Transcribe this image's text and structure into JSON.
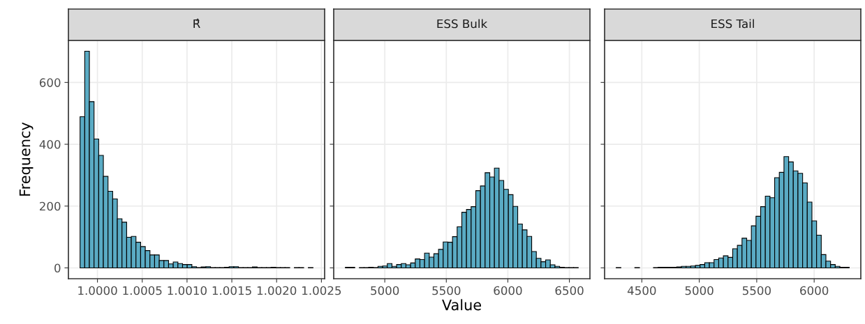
{
  "chart_data": [
    {
      "type": "histogram",
      "title": "R̂",
      "ylabel": "Frequency",
      "color": "#5aabc4",
      "grid": true,
      "bins": [
        0.999806,
        0.999858,
        0.99991,
        0.999962,
        1.000014,
        1.000066,
        1.000118,
        1.00017,
        1.000222,
        1.000274,
        1.000326,
        1.000378,
        1.00043,
        1.000482,
        1.000534,
        1.000586,
        1.000638,
        1.00069,
        1.000742,
        1.000794,
        1.000846,
        1.000898,
        1.00095,
        1.001002,
        1.001054,
        1.001106,
        1.001158,
        1.00121,
        1.001262,
        1.001314,
        1.001366,
        1.001418,
        1.00147,
        1.001522,
        1.001574,
        1.001626,
        1.001678,
        1.00173,
        1.001782,
        1.001834,
        1.001886,
        1.001938,
        1.00199,
        1.002042,
        1.002094,
        1.002146,
        1.002198,
        1.00225,
        1.002302,
        1.002354,
        1.002406
      ],
      "values": [
        489,
        701,
        538,
        417,
        364,
        296,
        248,
        223,
        159,
        148,
        99,
        102,
        83,
        69,
        56,
        42,
        42,
        24,
        24,
        13,
        19,
        14,
        11,
        11,
        4,
        1,
        3,
        4,
        1,
        1,
        1,
        2,
        4,
        4,
        1,
        1,
        1,
        3,
        1,
        1,
        1,
        2,
        1,
        1,
        1,
        0,
        1,
        1,
        0,
        1
      ],
      "xlim": [
        0.999676,
        1.002536
      ],
      "xticks": [
        {
          "value": 1.0,
          "label": "1.0000"
        },
        {
          "value": 1.0005,
          "label": "1.0005"
        },
        {
          "value": 1.001,
          "label": "1.0010"
        },
        {
          "value": 1.0015,
          "label": "1.0015"
        },
        {
          "value": 1.002,
          "label": "1.0020"
        },
        {
          "value": 1.0025,
          "label": "1.0025"
        }
      ],
      "ylim": [
        -35,
        736
      ],
      "yticks": [
        0,
        200,
        400,
        600
      ]
    },
    {
      "type": "histogram",
      "title": "ESS Bulk",
      "xlabel": "Value",
      "color": "#5aabc4",
      "grid": true,
      "tick_labels": "x",
      "bins": [
        4680,
        4717.84,
        4755.68,
        4793.52,
        4831.36,
        4869.2,
        4907.04,
        4944.88,
        4982.72,
        5020.56,
        5058.4,
        5096.24,
        5134.08,
        5171.92,
        5209.76,
        5247.6,
        5285.44,
        5323.28,
        5361.12,
        5398.96,
        5436.8,
        5474.64,
        5512.48,
        5550.32,
        5588.16,
        5626,
        5663.84,
        5701.68,
        5739.52,
        5777.36,
        5815.2,
        5853.04,
        5890.88,
        5928.72,
        5966.56,
        6004.4,
        6042.24,
        6080.08,
        6117.92,
        6155.76,
        6193.6,
        6231.44,
        6269.28,
        6307.12,
        6344.96,
        6382.8,
        6420.64,
        6458.48,
        6496.32,
        6534.16,
        6572
      ],
      "values": [
        2,
        2,
        0,
        1,
        1,
        2,
        1,
        5,
        6,
        14,
        5,
        11,
        14,
        10,
        16,
        29,
        27,
        48,
        35,
        46,
        60,
        84,
        83,
        101,
        133,
        180,
        189,
        198,
        250,
        265,
        308,
        294,
        323,
        283,
        254,
        237,
        199,
        142,
        123,
        102,
        53,
        31,
        20,
        26,
        10,
        5,
        2,
        1,
        1,
        1
      ],
      "xlim": [
        4585,
        6667
      ],
      "xticks": [
        5000,
        5500,
        6000,
        6500
      ],
      "ylim": [
        -35,
        736
      ],
      "yticks": [
        0,
        200,
        400,
        600
      ]
    },
    {
      "type": "histogram",
      "title": "ESS Tail",
      "color": "#5aabc4",
      "grid": true,
      "tick_labels": "x",
      "bins": [
        4277,
        4317.56,
        4358.12,
        4398.68,
        4439.24,
        4479.8,
        4520.36,
        4560.92,
        4601.48,
        4642.04,
        4682.6,
        4723.16,
        4763.72,
        4804.28,
        4844.84,
        4885.4,
        4925.96,
        4966.52,
        5007.08,
        5047.64,
        5088.2,
        5128.76,
        5169.32,
        5209.88,
        5250.44,
        5291,
        5331.56,
        5372.12,
        5412.68,
        5453.24,
        5493.8,
        5534.36,
        5574.92,
        5615.48,
        5656.04,
        5696.6,
        5737.16,
        5777.72,
        5818.28,
        5858.84,
        5899.4,
        5939.96,
        5980.52,
        6021.08,
        6061.64,
        6102.2,
        6142.76,
        6183.32,
        6223.88,
        6264.44,
        6305
      ],
      "values": [
        1,
        0,
        0,
        0,
        1,
        0,
        0,
        0,
        1,
        2,
        2,
        2,
        2,
        3,
        5,
        5,
        6,
        8,
        11,
        17,
        17,
        27,
        32,
        39,
        34,
        62,
        73,
        96,
        89,
        136,
        167,
        198,
        232,
        227,
        292,
        309,
        360,
        343,
        314,
        306,
        275,
        213,
        152,
        106,
        43,
        22,
        11,
        5,
        2,
        2
      ],
      "xlim": [
        4176,
        6406
      ],
      "xticks": [
        4500,
        5000,
        5500,
        6000
      ],
      "ylim": [
        -35,
        736
      ],
      "yticks": [
        0,
        200,
        400,
        600
      ]
    }
  ]
}
